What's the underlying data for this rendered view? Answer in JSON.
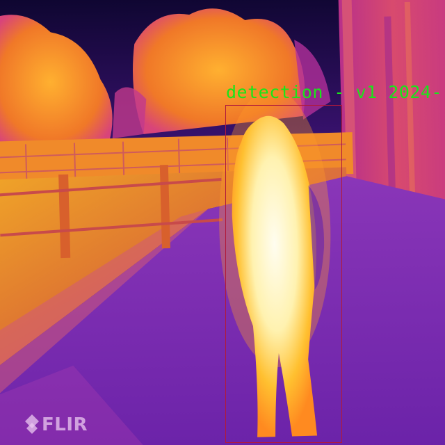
{
  "detection": {
    "label": "detection - v1 2024-"
  },
  "watermark": {
    "brand": "FLIR",
    "icon": "flir-diamond-icon"
  },
  "palette": {
    "sky": "#14083d",
    "hot_white": "#fff8d8",
    "hot_yellow": "#ffd540",
    "warm_orange": "#f59a22",
    "warm_magenta": "#c8307a",
    "cool_purple": "#7a2cbc",
    "cool_violet": "#5a1aa0",
    "bbox_color": "#b01a3c",
    "label_color": "#19e619"
  }
}
